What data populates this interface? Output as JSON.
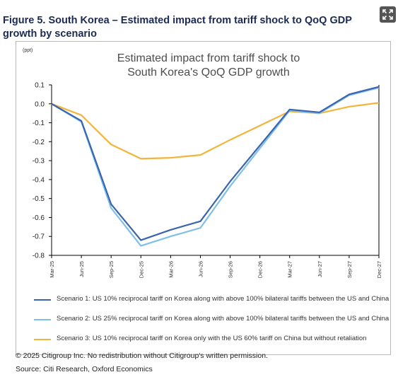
{
  "figure": {
    "title": "Figure 5. South Korea – Estimated impact from tariff shock to QoQ GDP growth by scenario",
    "copyright": "© 2025 Citigroup Inc. No redistribution without Citigroup's written permission.",
    "source": "Source: Citi Research, Oxford Economics",
    "expand_icon": "expand-icon"
  },
  "chart_data": {
    "type": "line",
    "title": "Estimated impact from tariff shock to South Korea's QoQ GDP growth",
    "title_lines": [
      "Estimated impact from tariff shock to",
      "South Korea's QoQ GDP growth"
    ],
    "ylabel": "(ppt)",
    "xlabel": "",
    "ylim": [
      -0.8,
      0.1
    ],
    "yticks": [
      "0.1",
      "0.0",
      "-0.1",
      "-0.2",
      "-0.3",
      "-0.4",
      "-0.5",
      "-0.6",
      "-0.7",
      "-0.8"
    ],
    "ytick_values": [
      0.1,
      0.0,
      -0.1,
      -0.2,
      -0.3,
      -0.4,
      -0.5,
      -0.6,
      -0.7,
      -0.8
    ],
    "grid": false,
    "legend_position": "bottom",
    "categories": [
      "Mar-25",
      "Jun-25",
      "Sep-25",
      "Dec-25",
      "Mar-26",
      "Jun-26",
      "Sep-26",
      "Dec-26",
      "Mar-27",
      "Jun-27",
      "Sep-27",
      "Dec-27"
    ],
    "series": [
      {
        "name": "Scenario 1: US 10% reciprocal tariff on Korea along with above 100% bilateral tariffs between the US and China",
        "color": "#3a64ad",
        "values": [
          0.0,
          -0.09,
          -0.53,
          -0.72,
          -0.665,
          -0.62,
          -0.41,
          -0.22,
          -0.03,
          -0.045,
          0.05,
          0.09
        ]
      },
      {
        "name": "Scenario 2: US 25% reciprocal tariff on Korea along with above 100% bilateral tariffs between the US and China",
        "color": "#7fc0e8",
        "values": [
          0.0,
          -0.095,
          -0.55,
          -0.75,
          -0.7,
          -0.655,
          -0.435,
          -0.235,
          -0.035,
          -0.05,
          0.045,
          0.085
        ]
      },
      {
        "name": "Scenario 3: US 10% reciprocal tariff on Korea only with the US 60% tariff on China but without retaliation",
        "color": "#f2b53a",
        "values": [
          0.0,
          -0.06,
          -0.215,
          -0.29,
          -0.285,
          -0.27,
          -0.19,
          -0.115,
          -0.04,
          -0.05,
          -0.015,
          0.005
        ]
      }
    ]
  }
}
